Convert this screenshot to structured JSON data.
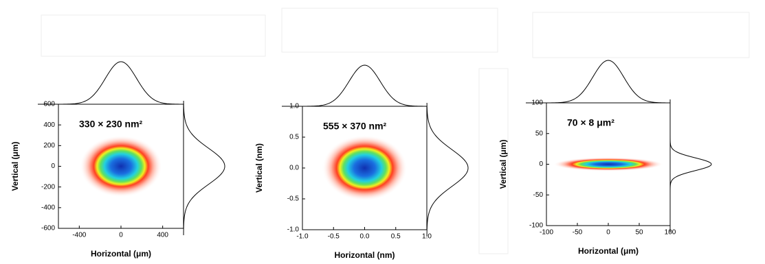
{
  "chart_data": [
    {
      "type": "heatmap",
      "annotation": "330 × 230 nm²",
      "x_label": "Horizontal (μm)",
      "y_label": "Vertical (μm)",
      "xlim": [
        -600,
        600
      ],
      "xticks": [
        -400,
        0,
        400
      ],
      "ylim": [
        -600,
        600
      ],
      "yticks": [
        -600,
        -400,
        -200,
        0,
        200,
        400,
        600
      ]
    },
    {
      "type": "heatmap",
      "annotation": "555 × 370 nm²",
      "x_label": "Horizontal (nm)",
      "y_label": "Vertical (nm)",
      "xlim": [
        -1,
        1
      ],
      "xticks": [
        {
          "value": -1,
          "label": "-1.0"
        },
        {
          "value": -0.5,
          "label": "-0.5"
        },
        {
          "value": 0,
          "label": "0.0"
        },
        {
          "value": 0.5,
          "label": "0.5"
        },
        {
          "value": 1,
          "label": "1.0"
        }
      ],
      "ylim": [
        -1,
        1
      ],
      "yticks": [
        {
          "value": -1,
          "label": "-1.0"
        },
        {
          "value": -0.5,
          "label": "-0.5"
        },
        {
          "value": 0,
          "label": "0.0"
        },
        {
          "value": 0.5,
          "label": "0.5"
        },
        {
          "value": 1,
          "label": "1.0"
        }
      ]
    },
    {
      "type": "heatmap",
      "annotation": "70 × 8 μm²",
      "x_label": "Horizontal (μm)",
      "y_label": "Vertical (μm)",
      "xlim": [
        -100,
        100
      ],
      "xticks": [
        -100,
        -50,
        0,
        50,
        100
      ],
      "ylim": [
        -100,
        100
      ],
      "yticks": [
        -100,
        -50,
        0,
        50,
        100
      ]
    }
  ]
}
